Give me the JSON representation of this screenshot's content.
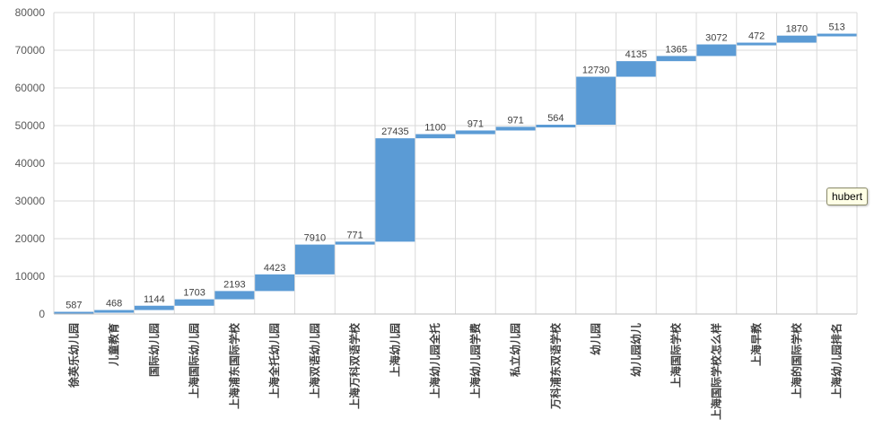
{
  "chart_data": {
    "type": "bar",
    "subtype": "waterfall",
    "categories": [
      "徐英乐幼儿园",
      "儿童教育",
      "国际幼儿园",
      "上海国际幼儿园",
      "上海浦东国际学校",
      "上海全托幼儿园",
      "上海双语幼儿园",
      "上海万科双语学校",
      "上海幼儿园",
      "上海幼儿园全托",
      "上海幼儿园学费",
      "私立幼儿园",
      "万科浦东双语学校",
      "幼儿园",
      "幼儿园幼儿",
      "上海国际学校",
      "上海国际学校怎么样",
      "上海早教",
      "上海的国际学校",
      "上海幼儿园排名"
    ],
    "values": [
      587,
      468,
      1144,
      1703,
      2193,
      4423,
      7910,
      771,
      27435,
      1100,
      971,
      971,
      564,
      12730,
      4135,
      1365,
      3072,
      472,
      1870,
      513
    ],
    "data_labels": [
      "587",
      "468",
      "1144",
      "1703",
      "2193",
      "4423",
      "7910",
      "771",
      "27435",
      "1100",
      "971",
      "971",
      "564",
      "12730",
      "4135",
      "1365",
      "3072",
      "472",
      "1870",
      "513"
    ],
    "ylim": [
      0,
      80000
    ],
    "yticks": [
      "0",
      "10000",
      "20000",
      "30000",
      "40000",
      "50000",
      "60000",
      "70000",
      "80000"
    ],
    "grid": true,
    "bar_color": "#5B9BD5"
  },
  "tooltip": {
    "text": "hubert"
  }
}
